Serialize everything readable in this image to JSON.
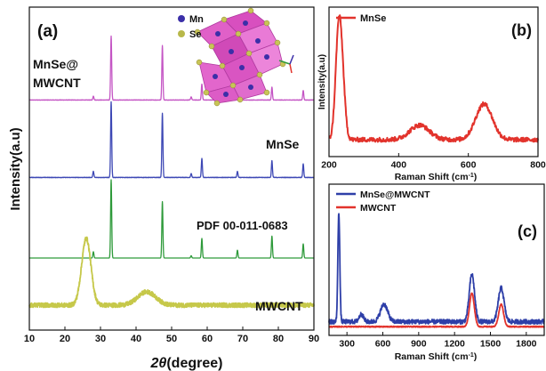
{
  "chart_data": [
    {
      "panel": "(a)",
      "type": "line",
      "xlabel_italic": "2θ",
      "xlabel_rest": "(degree)",
      "ylabel": "Intensity(a.u)",
      "xlim": [
        10,
        90
      ],
      "xticks": [
        "10",
        "20",
        "30",
        "40",
        "50",
        "60",
        "70",
        "80",
        "90"
      ],
      "legend_entries": [
        {
          "label": "Mn",
          "color": "#3b2fa8"
        },
        {
          "label": "Se",
          "color": "#b8b84a"
        }
      ],
      "series": [
        {
          "name": "MnSe@",
          "name2": "MWCNT",
          "color": "#c455c4",
          "baseline": 0.05,
          "noise": 0.003,
          "peaks": [
            [
              28.0,
              0.06,
              0.15
            ],
            [
              33.0,
              1.0,
              0.15
            ],
            [
              47.4,
              0.85,
              0.15
            ],
            [
              55.5,
              0.05,
              0.15
            ],
            [
              58.5,
              0.25,
              0.15
            ],
            [
              68.5,
              0.07,
              0.15
            ],
            [
              78.2,
              0.2,
              0.15
            ],
            [
              87.0,
              0.15,
              0.15
            ]
          ]
        },
        {
          "name": "MnSe",
          "color": "#3d48b5",
          "baseline": 0.03,
          "noise": 0.003,
          "peaks": [
            [
              28.0,
              0.08,
              0.15
            ],
            [
              33.0,
              1.0,
              0.15
            ],
            [
              47.4,
              0.85,
              0.15
            ],
            [
              55.5,
              0.05,
              0.15
            ],
            [
              58.5,
              0.25,
              0.15
            ],
            [
              68.5,
              0.08,
              0.15
            ],
            [
              78.2,
              0.22,
              0.15
            ],
            [
              87.0,
              0.18,
              0.15
            ]
          ]
        },
        {
          "name": "PDF 00-011-0683",
          "color": "#2e9a3a",
          "baseline": 0.0,
          "noise": 0.0,
          "peaks": [
            [
              28.0,
              0.08,
              0.15
            ],
            [
              33.0,
              1.0,
              0.15
            ],
            [
              47.4,
              0.72,
              0.15
            ],
            [
              55.5,
              0.03,
              0.15
            ],
            [
              58.5,
              0.25,
              0.15
            ],
            [
              68.5,
              0.1,
              0.15
            ],
            [
              78.2,
              0.28,
              0.15
            ],
            [
              87.0,
              0.18,
              0.15
            ]
          ]
        },
        {
          "name": "MWCNT",
          "color": "#c6c84a",
          "baseline": 0.2,
          "noise": 0.02,
          "broad": true,
          "peaks": [
            [
              26.0,
              0.6,
              1.3
            ],
            [
              43.0,
              0.12,
              2.5
            ]
          ]
        }
      ]
    },
    {
      "panel": "(b)",
      "type": "line",
      "xlabel": "Raman Shift (cm",
      "xlabel_sup": "-1",
      "xlabel_end": ")",
      "ylabel": "Intensity(a.u)",
      "xlim": [
        200,
        800
      ],
      "xticks": [
        "200",
        "400",
        "600",
        "800"
      ],
      "series": [
        {
          "name": "MnSe",
          "color": "#e2332c",
          "baseline": 0.12,
          "noise": 0.02,
          "peaks": [
            [
              228,
              1.0,
              9
            ],
            [
              240,
              0.3,
              8
            ],
            [
              460,
              0.13,
              28
            ],
            [
              645,
              0.32,
              24
            ]
          ]
        }
      ]
    },
    {
      "panel": "(c)",
      "type": "line",
      "xlabel": "Raman Shift (cm",
      "xlabel_sup": "-1",
      "xlabel_end": ")",
      "xlim": [
        150,
        1950
      ],
      "xticks": [
        "300",
        "600",
        "900",
        "1200",
        "1500",
        "1800"
      ],
      "series": [
        {
          "name": "MnSe@MWCNT",
          "color": "#2e3fa8",
          "baseline": 0.06,
          "noise": 0.018,
          "peaks": [
            [
              232,
              0.88,
              8
            ],
            [
              420,
              0.06,
              18
            ],
            [
              610,
              0.14,
              30
            ],
            [
              1345,
              0.38,
              22
            ],
            [
              1590,
              0.27,
              24
            ]
          ]
        },
        {
          "name": "MWCNT",
          "color": "#e2332c",
          "baseline": 0.02,
          "noise": 0.004,
          "peaks": [
            [
              1345,
              0.27,
              20
            ],
            [
              1590,
              0.18,
              20
            ]
          ]
        }
      ]
    }
  ]
}
